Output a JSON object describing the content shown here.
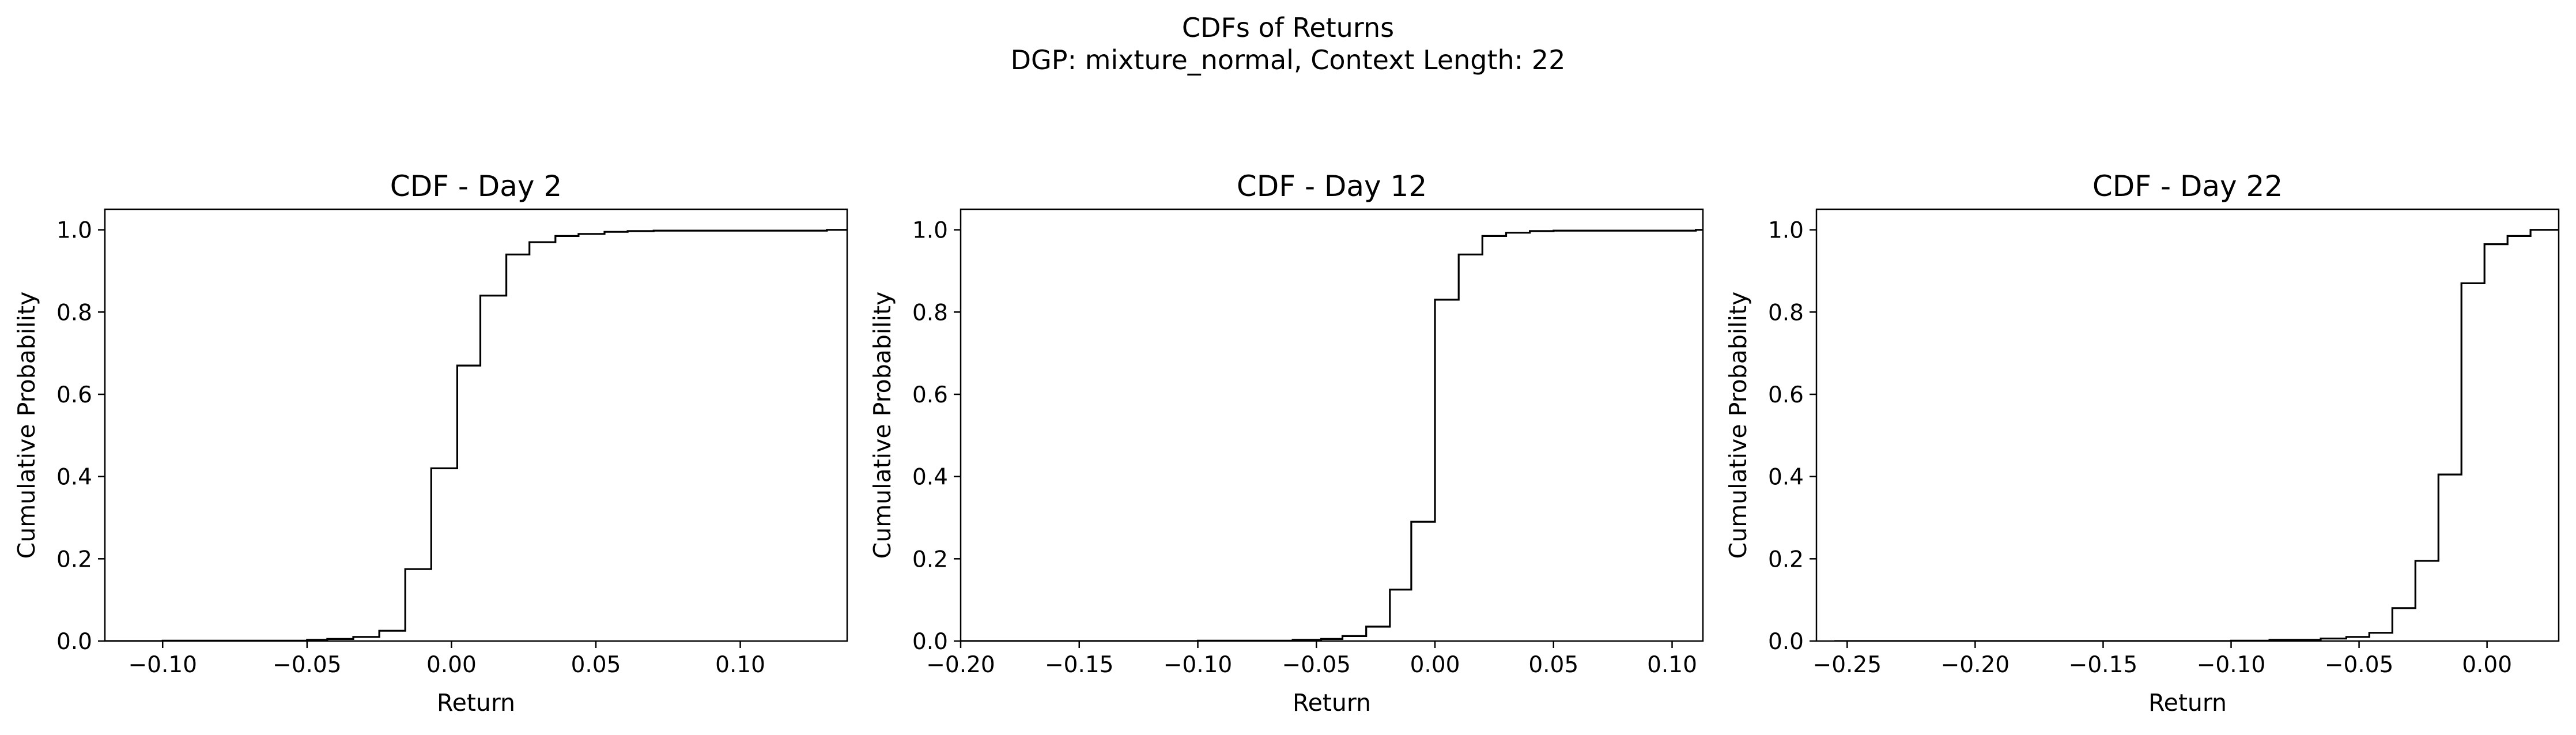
{
  "figure": {
    "title_line1": "CDFs of Returns",
    "title_line2": "DGP: mixture_normal, Context Length: 22"
  },
  "chart_data": [
    {
      "type": "line",
      "step": "post",
      "title": "CDF - Day 2",
      "xlabel": "Return",
      "ylabel": "Cumulative Probability",
      "xlim": [
        -0.12,
        0.137
      ],
      "ylim": [
        0.0,
        1.05
      ],
      "xticks": [
        -0.1,
        -0.05,
        0.0,
        0.05,
        0.1
      ],
      "xtick_labels": [
        "−0.10",
        "−0.05",
        "0.00",
        "0.05",
        "0.10"
      ],
      "yticks": [
        0.0,
        0.2,
        0.4,
        0.6,
        0.8,
        1.0
      ],
      "ytick_labels": [
        "0.0",
        "0.2",
        "0.4",
        "0.6",
        "0.8",
        "1.0"
      ],
      "grid": false,
      "legend": false,
      "color": "#000000",
      "x": [
        -0.12,
        -0.1,
        -0.05,
        -0.043,
        -0.034,
        -0.025,
        -0.016,
        -0.007,
        0.002,
        0.01,
        0.019,
        0.027,
        0.036,
        0.044,
        0.053,
        0.061,
        0.07,
        0.13,
        0.137
      ],
      "y": [
        0.0,
        0.001,
        0.003,
        0.005,
        0.01,
        0.025,
        0.175,
        0.42,
        0.67,
        0.84,
        0.94,
        0.97,
        0.985,
        0.99,
        0.995,
        0.997,
        0.998,
        1.0,
        1.0
      ]
    },
    {
      "type": "line",
      "step": "post",
      "title": "CDF - Day 12",
      "xlabel": "Return",
      "ylabel": "Cumulative Probability",
      "xlim": [
        -0.2,
        0.113
      ],
      "ylim": [
        0.0,
        1.05
      ],
      "xticks": [
        -0.2,
        -0.15,
        -0.1,
        -0.05,
        0.0,
        0.05,
        0.1
      ],
      "xtick_labels": [
        "−0.20",
        "−0.15",
        "−0.10",
        "−0.05",
        "0.00",
        "0.05",
        "0.10"
      ],
      "yticks": [
        0.0,
        0.2,
        0.4,
        0.6,
        0.8,
        1.0
      ],
      "ytick_labels": [
        "0.0",
        "0.2",
        "0.4",
        "0.6",
        "0.8",
        "1.0"
      ],
      "grid": false,
      "legend": false,
      "color": "#000000",
      "x": [
        -0.2,
        -0.1,
        -0.06,
        -0.048,
        -0.039,
        -0.029,
        -0.019,
        -0.01,
        0.0,
        0.01,
        0.02,
        0.03,
        0.04,
        0.05,
        0.11,
        0.113
      ],
      "y": [
        0.0,
        0.001,
        0.003,
        0.005,
        0.012,
        0.035,
        0.125,
        0.29,
        0.83,
        0.94,
        0.985,
        0.993,
        0.997,
        0.998,
        1.0,
        1.0
      ]
    },
    {
      "type": "line",
      "step": "post",
      "title": "CDF - Day 22",
      "xlabel": "Return",
      "ylabel": "Cumulative Probability",
      "xlim": [
        -0.262,
        0.028
      ],
      "ylim": [
        0.0,
        1.05
      ],
      "xticks": [
        -0.25,
        -0.2,
        -0.15,
        -0.1,
        -0.05,
        0.0
      ],
      "xtick_labels": [
        "−0.25",
        "−0.20",
        "−0.15",
        "−0.10",
        "−0.05",
        "0.00"
      ],
      "yticks": [
        0.0,
        0.2,
        0.4,
        0.6,
        0.8,
        1.0
      ],
      "ytick_labels": [
        "0.0",
        "0.2",
        "0.4",
        "0.6",
        "0.8",
        "1.0"
      ],
      "grid": false,
      "legend": false,
      "color": "#000000",
      "x": [
        -0.255,
        -0.1,
        -0.085,
        -0.065,
        -0.055,
        -0.046,
        -0.037,
        -0.028,
        -0.019,
        -0.01,
        -0.001,
        0.008,
        0.017,
        0.028
      ],
      "y": [
        0.0,
        0.001,
        0.003,
        0.006,
        0.01,
        0.02,
        0.08,
        0.195,
        0.405,
        0.87,
        0.965,
        0.985,
        1.0,
        1.0
      ]
    }
  ]
}
